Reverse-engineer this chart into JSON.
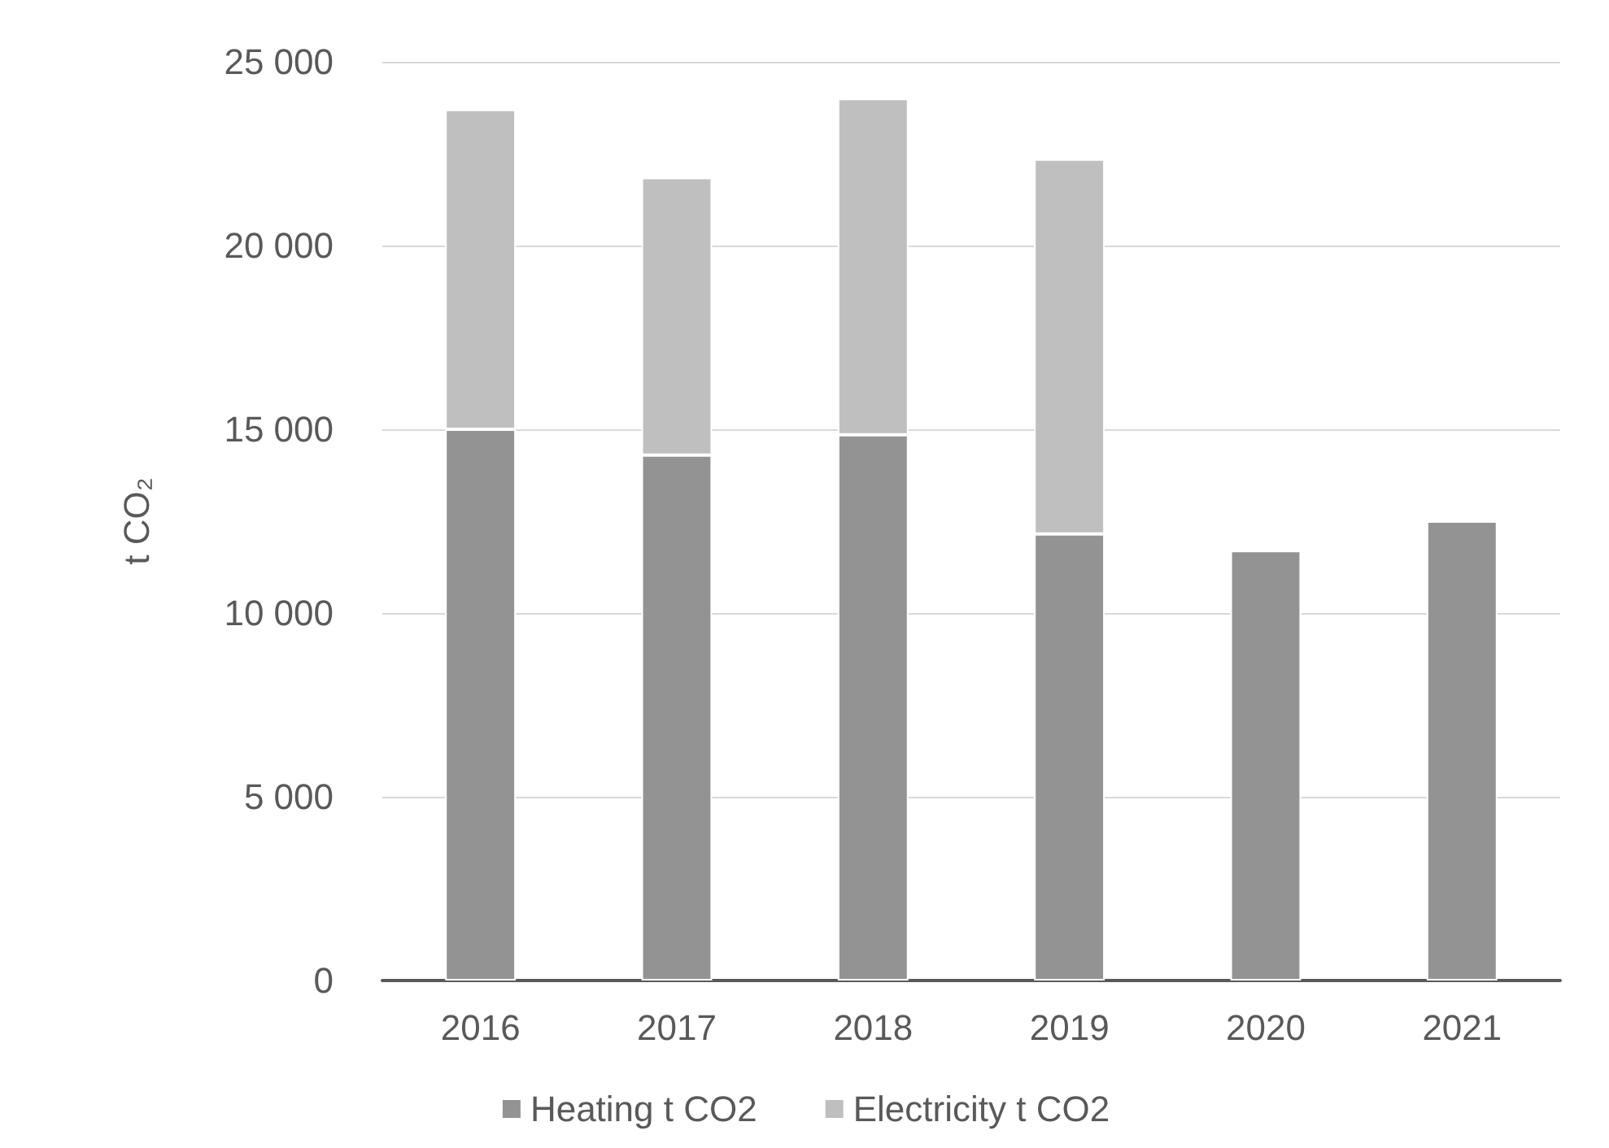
{
  "chart_data": {
    "type": "bar",
    "ylabel": "t CO₂",
    "categories": [
      "2016",
      "2017",
      "2018",
      "2019",
      "2020",
      "2021"
    ],
    "stacked": true,
    "series": [
      {
        "name": "Heating t CO2",
        "color": "#939393",
        "values": [
          15000,
          14300,
          14850,
          12150,
          11700,
          12500
        ]
      },
      {
        "name": "Electricity t CO2",
        "color": "#bfbfbf",
        "values": [
          8700,
          7550,
          9150,
          10200,
          null,
          null
        ]
      }
    ],
    "ylim": [
      0,
      25000
    ],
    "yticks": [
      {
        "value": 0,
        "label": "0"
      },
      {
        "value": 5000,
        "label": "5 000"
      },
      {
        "value": 10000,
        "label": "10 000"
      },
      {
        "value": 15000,
        "label": "15 000"
      },
      {
        "value": 20000,
        "label": "20 000"
      },
      {
        "value": 25000,
        "label": "25 000"
      }
    ],
    "grid": "y",
    "legend": "bottom"
  }
}
